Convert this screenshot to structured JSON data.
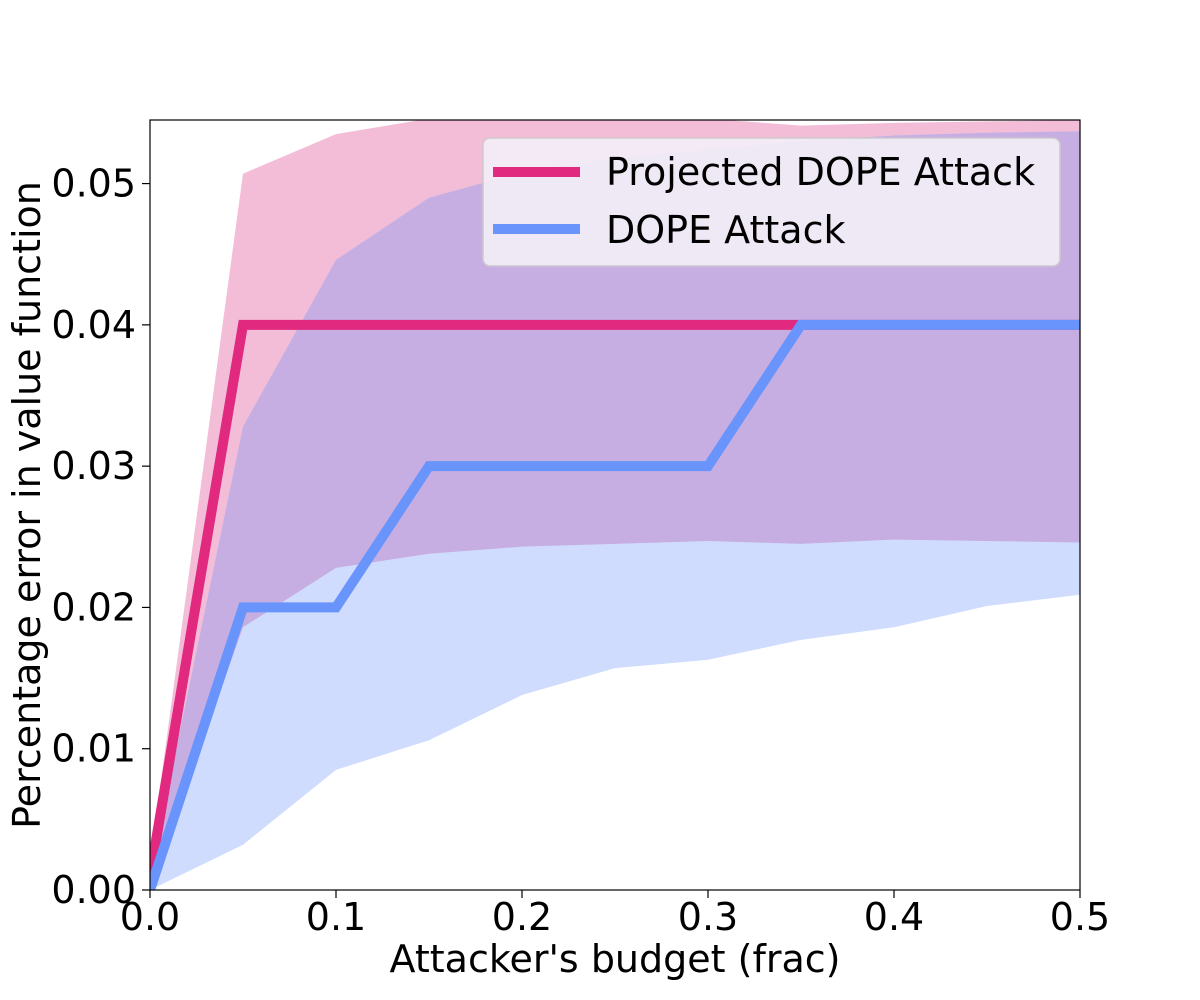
{
  "chart_data": {
    "type": "line",
    "title": "",
    "xlabel": "Attacker's budget (frac)",
    "ylabel": "Percentage error in value function",
    "xlim": [
      0.0,
      0.5
    ],
    "ylim": [
      0.0,
      0.0545
    ],
    "xticks": [
      0.0,
      0.1,
      0.2,
      0.3,
      0.4,
      0.5
    ],
    "xtick_labels": [
      "0.0",
      "0.1",
      "0.2",
      "0.3",
      "0.4",
      "0.5"
    ],
    "yticks": [
      0.0,
      0.01,
      0.02,
      0.03,
      0.04,
      0.05
    ],
    "ytick_labels": [
      "0.00",
      "0.01",
      "0.02",
      "0.03",
      "0.04",
      "0.05"
    ],
    "grid": false,
    "legend_position": "top-right",
    "x": [
      0.0,
      0.05,
      0.1,
      0.15,
      0.2,
      0.25,
      0.3,
      0.35,
      0.4,
      0.45,
      0.5
    ],
    "series": [
      {
        "name": "Projected DOPE Attack",
        "color": "#e0297f",
        "band_color": "#f3bcd7",
        "values": [
          0.001,
          0.04,
          0.04,
          0.04,
          0.04,
          0.04,
          0.04,
          0.04,
          0.04,
          0.04,
          0.04
        ],
        "band_upper": [
          0.002,
          0.0507,
          0.0535,
          0.0546,
          0.0546,
          0.0546,
          0.0546,
          0.0541,
          0.0543,
          0.0544,
          0.0545
        ],
        "band_lower": [
          0.0,
          0.0186,
          0.0228,
          0.0238,
          0.0243,
          0.0245,
          0.0247,
          0.0245,
          0.0248,
          0.0247,
          0.0246
        ]
      },
      {
        "name": "DOPE Attack",
        "color": "#6894fc",
        "band_color": "#d0dcfe",
        "values": [
          0.0,
          0.02,
          0.02,
          0.03,
          0.03,
          0.03,
          0.03,
          0.04,
          0.04,
          0.04,
          0.04
        ],
        "band_upper": [
          0.001,
          0.0328,
          0.0446,
          0.049,
          0.0508,
          0.0518,
          0.0524,
          0.053,
          0.0534,
          0.0536,
          0.0537
        ],
        "band_lower": [
          0.0,
          0.0032,
          0.0085,
          0.0106,
          0.0138,
          0.0157,
          0.0163,
          0.0177,
          0.0186,
          0.0201,
          0.0209
        ]
      }
    ],
    "overlap_color": "#c6aee2"
  }
}
